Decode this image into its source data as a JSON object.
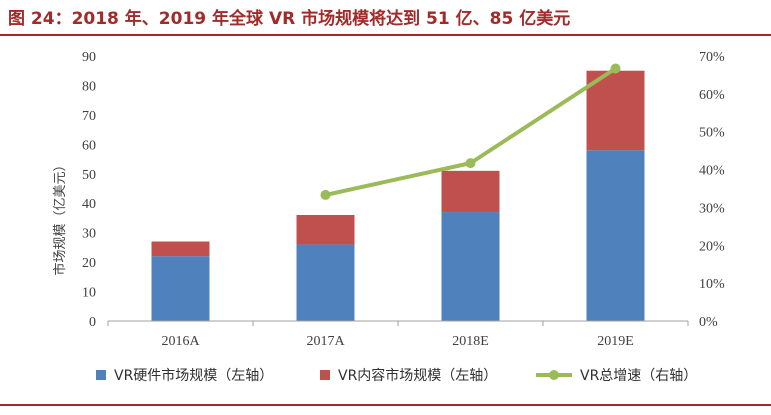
{
  "title": "图 24：2018 年、2019 年全球 VR 市场规模将达到 51 亿、85 亿美元",
  "chart_data": {
    "type": "bar",
    "stacked": true,
    "categories": [
      "2016A",
      "2017A",
      "2018E",
      "2019E"
    ],
    "series": [
      {
        "name": "VR硬件市场规模（左轴）",
        "kind": "bar",
        "axis": "left",
        "color": "#4f81bd",
        "values": [
          22,
          26,
          37,
          58
        ]
      },
      {
        "name": "VR内容市场规模（左轴）",
        "kind": "bar",
        "axis": "left",
        "color": "#c0504d",
        "values": [
          5,
          10,
          14,
          27
        ]
      },
      {
        "name": "VR总增速（右轴）",
        "kind": "line",
        "axis": "right",
        "color": "#9bbb59",
        "values": [
          null,
          0.333,
          0.417,
          0.667
        ]
      }
    ],
    "ylabel": "市场规模（亿美元）",
    "ylim": [
      0,
      90
    ],
    "yticks": [
      "0",
      "10",
      "20",
      "30",
      "40",
      "50",
      "60",
      "70",
      "80",
      "90"
    ],
    "y2lim": [
      0,
      0.7
    ],
    "y2ticks": [
      "0%",
      "10%",
      "20%",
      "30%",
      "40%",
      "50%",
      "60%",
      "70%"
    ],
    "legend_position": "bottom",
    "grid": false
  }
}
